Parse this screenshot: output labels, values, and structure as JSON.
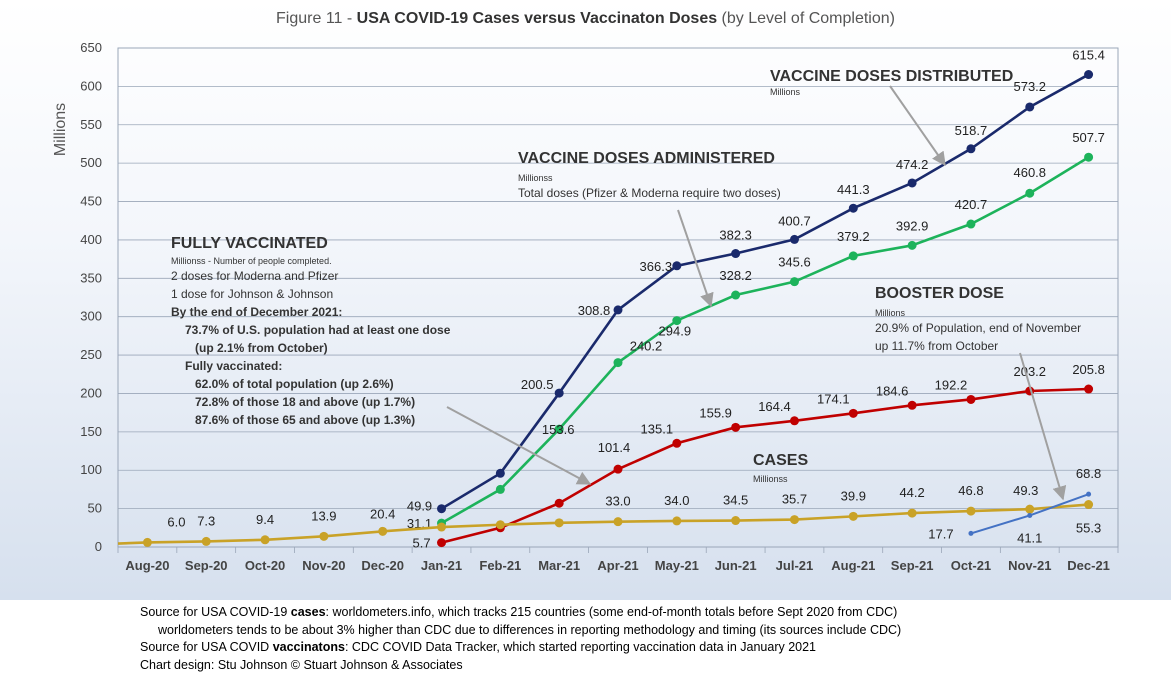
{
  "title": {
    "prefix": "Figure 11 - ",
    "main": "USA COVID-19 Cases versus Vaccinaton Doses",
    "suffix": " (by Level of Completion)"
  },
  "chart_data": {
    "type": "line",
    "ylabel": "Millions",
    "ylim": [
      0,
      650
    ],
    "yticks": [
      0,
      50,
      100,
      150,
      200,
      250,
      300,
      350,
      400,
      450,
      500,
      550,
      600,
      650
    ],
    "grid": true,
    "categories": [
      "Aug-20",
      "Sep-20",
      "Oct-20",
      "Nov-20",
      "Dec-20",
      "Jan-21",
      "Feb-21",
      "Mar-21",
      "Apr-21",
      "May-21",
      "Jun-21",
      "Jul-21",
      "Aug-21",
      "Sep-21",
      "Oct-21",
      "Nov-21",
      "Dec-21"
    ],
    "series": [
      {
        "key": "distributed",
        "color": "#1a2a6c",
        "values": [
          null,
          null,
          null,
          null,
          null,
          49.9,
          96,
          200.5,
          308.8,
          366.3,
          382.3,
          400.7,
          441.3,
          474.2,
          518.7,
          573.2,
          615.4
        ],
        "labels": [
          null,
          null,
          null,
          null,
          null,
          "49.9",
          null,
          "200.5",
          "308.8",
          "366.3",
          "382.3",
          "400.7",
          "441.3",
          "474.2",
          "518.7",
          "573.2",
          "615.4"
        ]
      },
      {
        "key": "administered",
        "color": "#1db35b",
        "values": [
          null,
          null,
          null,
          null,
          null,
          31.1,
          75,
          153.6,
          240.2,
          294.9,
          328.2,
          345.6,
          379.2,
          392.9,
          420.7,
          460.8,
          507.7
        ],
        "labels": [
          null,
          null,
          null,
          null,
          null,
          "31.1",
          null,
          "153.6",
          "240.2",
          "294.9",
          "328.2",
          "345.6",
          "379.2",
          "392.9",
          "420.7",
          "460.8",
          "507.7"
        ]
      },
      {
        "key": "fully",
        "color": "#c00000",
        "values": [
          null,
          null,
          null,
          null,
          null,
          5.7,
          25,
          57,
          101.4,
          135.1,
          155.9,
          164.4,
          174.1,
          184.6,
          192.2,
          203.2,
          205.8
        ],
        "labels": [
          null,
          null,
          null,
          null,
          null,
          "5.7",
          null,
          null,
          "101.4",
          "135.1",
          "155.9",
          "164.4",
          "174.1",
          "184.6",
          "192.2",
          "203.2",
          "205.8"
        ]
      },
      {
        "key": "cases",
        "color": "#c9a227",
        "values": [
          6.0,
          7.3,
          9.4,
          13.9,
          20.4,
          26,
          29,
          31.5,
          33.0,
          34.0,
          34.5,
          35.7,
          39.9,
          44.2,
          46.8,
          49.3,
          55.3
        ],
        "labels": [
          "6.0",
          "7.3",
          "9.4",
          "13.9",
          "20.4",
          null,
          null,
          null,
          "33.0",
          "34.0",
          "34.5",
          "35.7",
          "39.9",
          "44.2",
          "46.8",
          "49.3",
          "55.3"
        ]
      },
      {
        "key": "booster",
        "color": "#4472c4",
        "values": [
          null,
          null,
          null,
          null,
          null,
          null,
          null,
          null,
          null,
          null,
          null,
          null,
          null,
          null,
          17.7,
          41.1,
          68.8
        ],
        "labels": [
          null,
          null,
          null,
          null,
          null,
          null,
          null,
          null,
          null,
          null,
          null,
          null,
          null,
          null,
          "17.7",
          "41.1",
          "68.8"
        ]
      }
    ]
  },
  "annotations": {
    "distributed": {
      "heading": "VACCINE DOSES DISTRIBUTED",
      "unit": "Millions"
    },
    "administered": {
      "heading": "VACCINE DOSES ADMINISTERED",
      "unit": "Millionss",
      "note": "Total doses (Pfizer & Moderna require two doses)"
    },
    "fully": {
      "heading": "FULLY VACCINATED",
      "unit": "Millionss - Number of people completed.",
      "line1": "2 doses for Moderna and Pfizer",
      "line2": "1 dose for Johnson & Johnson",
      "line3": "By the end of December 2021:",
      "line4": "73.7% of U.S. population had at least one dose",
      "line5": "(up 2.1% from October)",
      "line6": "Fully vaccinated:",
      "line7": "62.0% of total population (up 2.6%)",
      "line8": "72.8% of those 18 and above (up 1.7%)",
      "line9": "87.6% of those 65 and above (up 1.3%)"
    },
    "booster": {
      "heading": "BOOSTER DOSE",
      "unit": "Millions",
      "line1": "20.9% of Population, end of November",
      "line2": "up 11.7% from October"
    },
    "cases": {
      "heading": "CASES",
      "unit": "Millionss"
    }
  },
  "footer": {
    "l1a": "Source for USA COVID-19 ",
    "l1b": "cases",
    "l1c": ": worldometers.info, which tracks 215 countries  (some end-of-month totals before Sept 2020 from CDC)",
    "l2": "worldometers tends to be about 3% higher than CDC due to differences in reporting methodology and timing (its sources include CDC)",
    "l3a": "Source for USA COVID ",
    "l3b": "vaccinatons",
    "l3c": ": CDC COVID Data Tracker, which started reporting vaccination data in January 2021",
    "l4": "Chart design: Stu Johnson © Stuart Johnson & Associates"
  }
}
